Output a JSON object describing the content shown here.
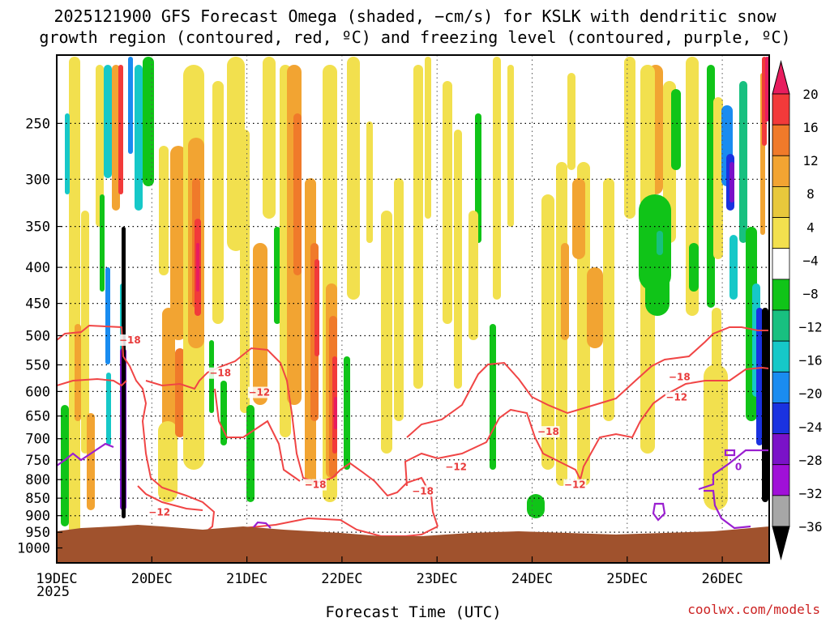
{
  "chart_data": {
    "type": "heatmap",
    "title_lines": [
      "2025121900 GFS Forecast Omega (shaded, −cm/s) for KSLK with dendritic snow",
      "growth region (contoured, red, ºC) and freezing level (contoured, purple, ºC)"
    ],
    "xlabel": "Forecast Time (UTC)",
    "watermark": "coolwx.com/models",
    "x_ticks": [
      "19DEC",
      "20DEC",
      "21DEC",
      "22DEC",
      "23DEC",
      "24DEC",
      "25DEC",
      "26DEC"
    ],
    "x_year": "2025",
    "x_range_days": [
      0,
      7.5
    ],
    "y_scale": "log-pressure",
    "y_range": [
      200,
      1050
    ],
    "y_ticks": [
      250,
      300,
      350,
      400,
      450,
      500,
      550,
      600,
      650,
      700,
      750,
      800,
      850,
      900,
      950,
      1000
    ],
    "grid": true,
    "colorbar": {
      "labels": [
        "20",
        "16",
        "12",
        "8",
        "4",
        "−4",
        "−8",
        "−12",
        "−16",
        "−20",
        "−24",
        "−28",
        "−32",
        "−36"
      ],
      "colors": [
        "#e81d5e",
        "#f23a3a",
        "#f07a2a",
        "#f2a432",
        "#e8c83c",
        "#f2e04e",
        "#ffffff",
        "#10c418",
        "#18c080",
        "#16c8c8",
        "#1a8cf0",
        "#1a32e0",
        "#7a12c8",
        "#a010d8",
        "#a6a6a6",
        "#000000"
      ]
    },
    "surface_color": "#a0522d",
    "contours_dgz": [
      {
        "label": "−18",
        "x_day": 0.77,
        "p": 510
      },
      {
        "label": "−18",
        "x_day": 1.72,
        "p": 568
      },
      {
        "label": "−12",
        "x_day": 2.13,
        "p": 605
      },
      {
        "label": "−12",
        "x_day": 1.08,
        "p": 895
      },
      {
        "label": "−18",
        "x_day": 2.72,
        "p": 818
      },
      {
        "label": "−18",
        "x_day": 3.85,
        "p": 835
      },
      {
        "label": "−12",
        "x_day": 4.2,
        "p": 772
      },
      {
        "label": "−18",
        "x_day": 5.17,
        "p": 688
      },
      {
        "label": "−12",
        "x_day": 5.45,
        "p": 818
      },
      {
        "label": "−18",
        "x_day": 6.55,
        "p": 575
      },
      {
        "label": "−12",
        "x_day": 6.52,
        "p": 615
      }
    ],
    "contours_freezing": [
      {
        "label": "0",
        "x_day": 7.17,
        "p": 772
      }
    ]
  }
}
